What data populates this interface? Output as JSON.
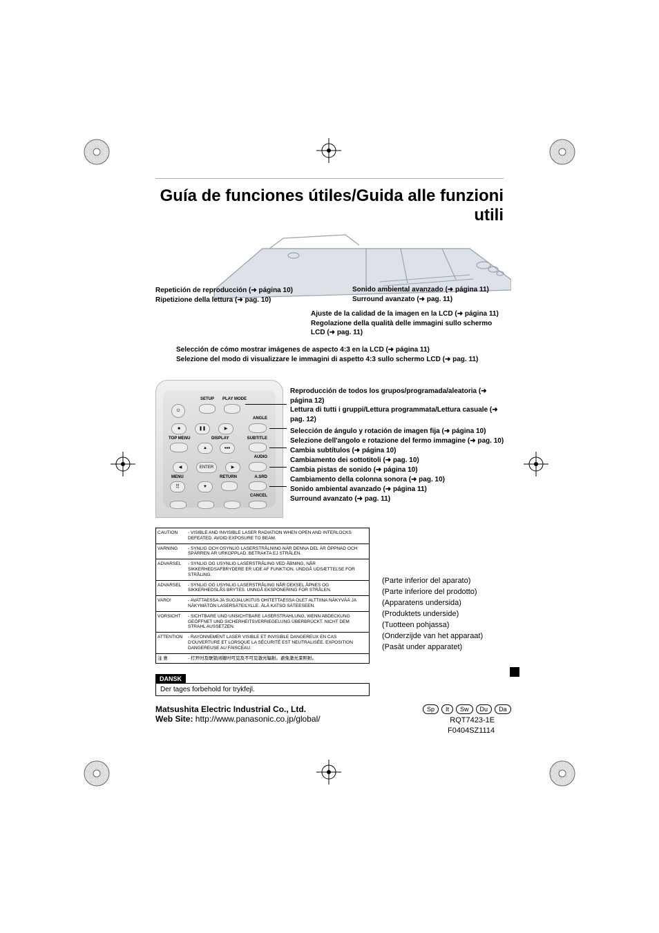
{
  "title": "Guía de funciones útiles/Guida alle funzioni utili",
  "callouts": {
    "repeat": {
      "es": "Repetición de reproducción (➜ página 10)",
      "it": "Ripetizione della lettura (➜ pag. 10)"
    },
    "surround_top": {
      "es": "Sonido ambiental avanzado (➜ página 11)",
      "it": "Surround avanzato (➜ pag. 11)"
    },
    "quality": {
      "es": "Ajuste de la calidad de la imagen en la LCD (➜ página 11)",
      "it": "Regolazione della qualità delle immagini sullo schermo LCD (➜ pag. 11)"
    },
    "aspect": {
      "es": "Selección de cómo mostrar imágenes de aspecto 4:3 en la LCD (➜ página 11)",
      "it": "Selezione del modo di visualizzare le immagini di aspetto 4:3 sullo schermo LCD (➜ pag. 11)"
    },
    "playmode": {
      "es": "Reproducción de todos los grupos/programada/aleatoria (➜ página 12)",
      "it": "Lettura di tutti i gruppi/Lettura programmata/Lettura casuale (➜ pag. 12)"
    },
    "angle": {
      "es": "Selección de ángulo y rotación de imagen fija (➜ página 10)",
      "it": "Selezione dell'angolo e rotazione del fermo immagine (➜ pag. 10)"
    },
    "subtitle": {
      "es": "Cambia subtítulos (➜ página 10)",
      "it": "Cambiamento dei sottotitoli (➜ pag. 10)"
    },
    "audio": {
      "es": "Cambia pistas de sonido (➜ página 10)",
      "it": "Cambiamento della colonna sonora (➜ pag. 10)"
    },
    "asrd": {
      "es": "Sonido ambiental avanzado (➜ página 11)",
      "it": "Surround avanzato (➜ pag. 11)"
    }
  },
  "remote": {
    "setup": "SETUP",
    "playmode": "PLAY MODE",
    "angle": "ANGLE",
    "topmenu": "TOP MENU",
    "display": "DISPLAY",
    "subtitle": "SUBTITLE",
    "audio": "AUDIO",
    "enter": "ENTER",
    "menu": "MENU",
    "return": "RETURN",
    "asrd": "A.SRD",
    "cancel": "CANCEL"
  },
  "warnings": [
    {
      "label": "CAUTION",
      "text": "- VISIBLE AND INVISIBLE LASER RADIATION WHEN OPEN AND INTERLOCKS DEFEATED. AVOID EXPOSURE TO BEAM."
    },
    {
      "label": "VARNING",
      "text": "- SYNLIG OCH OSYNLIG LASERSTRÅLNING NÄR DENNA DEL ÄR ÖPPNAD OCH SPÄRREN ÄR URKOPPLAD.  BETRAKTA EJ STRÅLEN."
    },
    {
      "label": "ADVARSEL",
      "text": "- SYNLIG OG USYNLIG LASERSTRÅLING VED ÅBNING, NÅR SIKKERHEDSAFBRYDERE ER UDE AF FUNKTION. UNDGÅ UDSÆTTELSE FOR STRÅLING."
    },
    {
      "label": "ADVARSEL",
      "text": "- SYNLIG OG USYNLIG LASERSTRÅLING NÅR DEKSEL ÅPNES OG SIKKERHEDSLÅS BRYTES. UNNGÅ EKSPONERING FOR STRÅLEN."
    },
    {
      "label": "VARO!",
      "text": "- AVATTAESSA JA SUOJALUKITUS OHITETTAESSA OLET ALTTIINA NÄKYVÄÄ JA NÄKYMÄTÖN LASERSÄTEILYLLE.  ÄLÄ KATSO SÄTEESEEN."
    },
    {
      "label": "VORSICHT",
      "text": "- SICHTBARE UND UNSICHTBARE LASERSTRAHLUNG, WENN ABDECKUNG GEÖFFNET UND SICHERHEITSVERRIEGELUNG ÜBERBRÜCKT.  NICHT DEM STRAHL AUSSETZEN."
    },
    {
      "label": "ATTENTION",
      "text": "- RAYONNEMENT LASER VISIBLE ET INVISIBLE DANGEREUX EN CAS D'OUVERTURE ET LORSQUE LA SÉCURITÉ EST NEUTRALISÉE.  EXPOSITION DANGEREUSE AU FAISCEAU."
    },
    {
      "label": "注 意",
      "text": "- 打开时及联锁闭撤时可见及不可见激光辐射。避免激光束照射。"
    }
  ],
  "locations": [
    "(Parte inferior del aparato)",
    "(Parte inferiore del prodotto)",
    "(Apparatens undersida)",
    "(Produktets underside)",
    "(Tuotteen pohjassa)",
    "(Onderzijde van het apparaat)",
    "(Pasāt under apparatet)"
  ],
  "dansk": {
    "label": "DANSK",
    "text": "Der tages forbehold for trykfejl."
  },
  "footer": {
    "company": "Matsushita Electric Industrial Co., Ltd.",
    "website_label": "Web Site:",
    "website_url": "http://www.panasonic.co.jp/global/",
    "langs": [
      "Sp",
      "It",
      "Sw",
      "Du",
      "Da"
    ],
    "code1": "RQT7423-1E",
    "code2": "F0404SZ1114"
  },
  "colors": {
    "text": "#000000",
    "bg": "#ffffff",
    "remote_bg1": "#f0f0f0",
    "remote_bg2": "#d8d8d8",
    "border": "#000000",
    "illustration": "#b8c0c8"
  }
}
